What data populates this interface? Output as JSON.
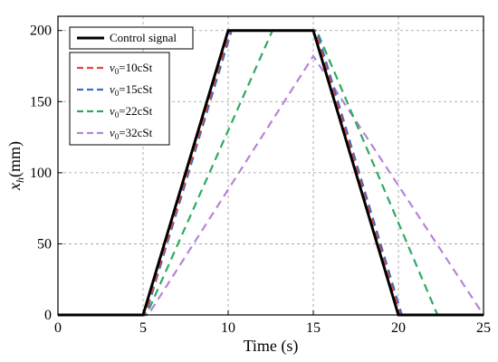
{
  "chart_data": {
    "type": "line",
    "xlabel": "Time (s)",
    "ylabel": "x",
    "ylabel_sub": "h",
    "ylabel_unit": "(mm)",
    "xlim": [
      0,
      25
    ],
    "ylim": [
      0,
      210
    ],
    "xticks": [
      0,
      5,
      10,
      15,
      20,
      25
    ],
    "yticks": [
      0,
      50,
      100,
      150,
      200
    ],
    "grid": true,
    "legend_placement": "top-left",
    "series": [
      {
        "name": "Control signal",
        "legend_main": "Control signal",
        "legend_sub": "",
        "legend_rest": "",
        "color": "#000000",
        "style": "solid",
        "x": [
          0,
          5,
          10,
          15,
          20,
          25
        ],
        "y": [
          0,
          0,
          200,
          200,
          0,
          0
        ]
      },
      {
        "name": "ν0=10cSt",
        "legend_main": "ν",
        "legend_sub": "0",
        "legend_rest": "=10cSt",
        "color": "#e8473b",
        "style": "dashed",
        "x": [
          0,
          5.1,
          10.1,
          15.1,
          20.1,
          25
        ],
        "y": [
          0,
          0,
          200,
          200,
          0,
          0
        ]
      },
      {
        "name": "ν0=15cSt",
        "legend_main": "ν",
        "legend_sub": "0",
        "legend_rest": "=15cSt",
        "color": "#3a6ec4",
        "style": "dashed",
        "x": [
          0,
          5.15,
          10.2,
          15.2,
          20.2,
          25
        ],
        "y": [
          0,
          0,
          200,
          200,
          0,
          0
        ]
      },
      {
        "name": "ν0=22cSt",
        "legend_main": "ν",
        "legend_sub": "0",
        "legend_rest": "=22cSt",
        "color": "#2eaa5f",
        "style": "dashed",
        "x": [
          0,
          5.2,
          12.6,
          15.2,
          22.3,
          25
        ],
        "y": [
          0,
          0,
          200,
          200,
          0,
          0
        ]
      },
      {
        "name": "ν0=32cSt",
        "legend_main": "ν",
        "legend_sub": "0",
        "legend_rest": "=32cSt",
        "color": "#b784d8",
        "style": "dashed",
        "x": [
          0,
          5.3,
          15.0,
          25
        ],
        "y": [
          0,
          0,
          182,
          0
        ]
      }
    ]
  }
}
